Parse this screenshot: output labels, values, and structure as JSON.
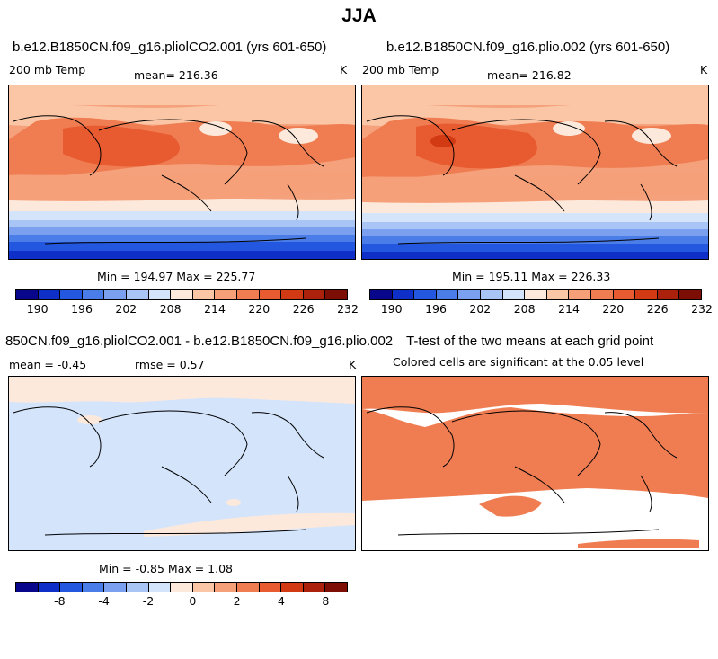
{
  "main_title": "JJA",
  "panels": [
    {
      "title": "b.e12.B1850CN.f09_g16.pliolCO2.001 (yrs 601-650)",
      "variable": "200 mb Temp",
      "mean_label": "mean=",
      "mean_value": "216.36",
      "units": "K",
      "min_max": "Min = 194.97 Max = 225.77"
    },
    {
      "title": "b.e12.B1850CN.f09_g16.plio.002 (yrs 601-650)",
      "variable": "200 mb Temp",
      "mean_label": "mean=",
      "mean_value": "216.82",
      "units": "K",
      "min_max": "Min = 195.11 Max = 226.33"
    },
    {
      "title": "850CN.f09_g16.pliolCO2.001 - b.e12.B1850CN.f09_g16.plio.002",
      "mean_text": "mean =   -0.45",
      "rmse_text": "rmse =    0.57",
      "units": "K",
      "min_max": "Min = -0.85 Max =   1.08"
    },
    {
      "title": "T-test of the two means at each grid point",
      "subtitle": "Colored cells are significant at the 0.05 level"
    }
  ],
  "colorbar_abs": {
    "ticks": [
      "190",
      "196",
      "202",
      "208",
      "214",
      "220",
      "226",
      "232"
    ],
    "colors": [
      "#08068a",
      "#0f30c8",
      "#2457e0",
      "#4a7de8",
      "#7ba0ef",
      "#a9c5f5",
      "#d3e4fb",
      "#fde9dc",
      "#fbc6a6",
      "#f6a07a",
      "#f07d52",
      "#e85a30",
      "#d23a14",
      "#ac210b",
      "#7d0e05"
    ]
  },
  "colorbar_diff": {
    "ticks": [
      "-8",
      "-4",
      "-2",
      "0",
      "2",
      "4",
      "8"
    ],
    "colors": [
      "#08068a",
      "#0f30c8",
      "#2457e0",
      "#4a7de8",
      "#7ba0ef",
      "#a9c5f5",
      "#d3e4fb",
      "#fde9dc",
      "#fbc6a6",
      "#f6a07a",
      "#f07d52",
      "#e85a30",
      "#d23a14",
      "#ac210b",
      "#7d0e05"
    ]
  },
  "chart_data": [
    {
      "type": "heatmap",
      "title": "b.e12.B1850CN.f09_g16.pliolCO2.001 (yrs 601-650)",
      "field": "200 mb Temp",
      "units": "K",
      "mean": 216.36,
      "min": 194.97,
      "max": 225.77,
      "contour_levels": [
        190,
        193,
        196,
        199,
        202,
        205,
        208,
        211,
        214,
        217,
        220,
        223,
        226,
        229,
        232
      ],
      "colorbar_ticks": [
        190,
        196,
        202,
        208,
        214,
        220,
        226,
        232
      ]
    },
    {
      "type": "heatmap",
      "title": "b.e12.B1850CN.f09_g16.plio.002 (yrs 601-650)",
      "field": "200 mb Temp",
      "units": "K",
      "mean": 216.82,
      "min": 195.11,
      "max": 226.33,
      "contour_levels": [
        190,
        193,
        196,
        199,
        202,
        205,
        208,
        211,
        214,
        217,
        220,
        223,
        226,
        229,
        232
      ],
      "colorbar_ticks": [
        190,
        196,
        202,
        208,
        214,
        220,
        226,
        232
      ]
    },
    {
      "type": "heatmap",
      "title": "850CN.f09_g16.pliolCO2.001 - b.e12.B1850CN.f09_g16.plio.002",
      "field": "difference",
      "units": "K",
      "mean": -0.45,
      "rmse": 0.57,
      "min": -0.85,
      "max": 1.08,
      "colorbar_ticks": [
        -8,
        -4,
        -2,
        0,
        2,
        4,
        8
      ]
    },
    {
      "type": "heatmap",
      "title": "T-test of the two means at each grid point",
      "subtitle": "Colored cells are significant at the 0.05 level",
      "significance_level": 0.05
    }
  ]
}
